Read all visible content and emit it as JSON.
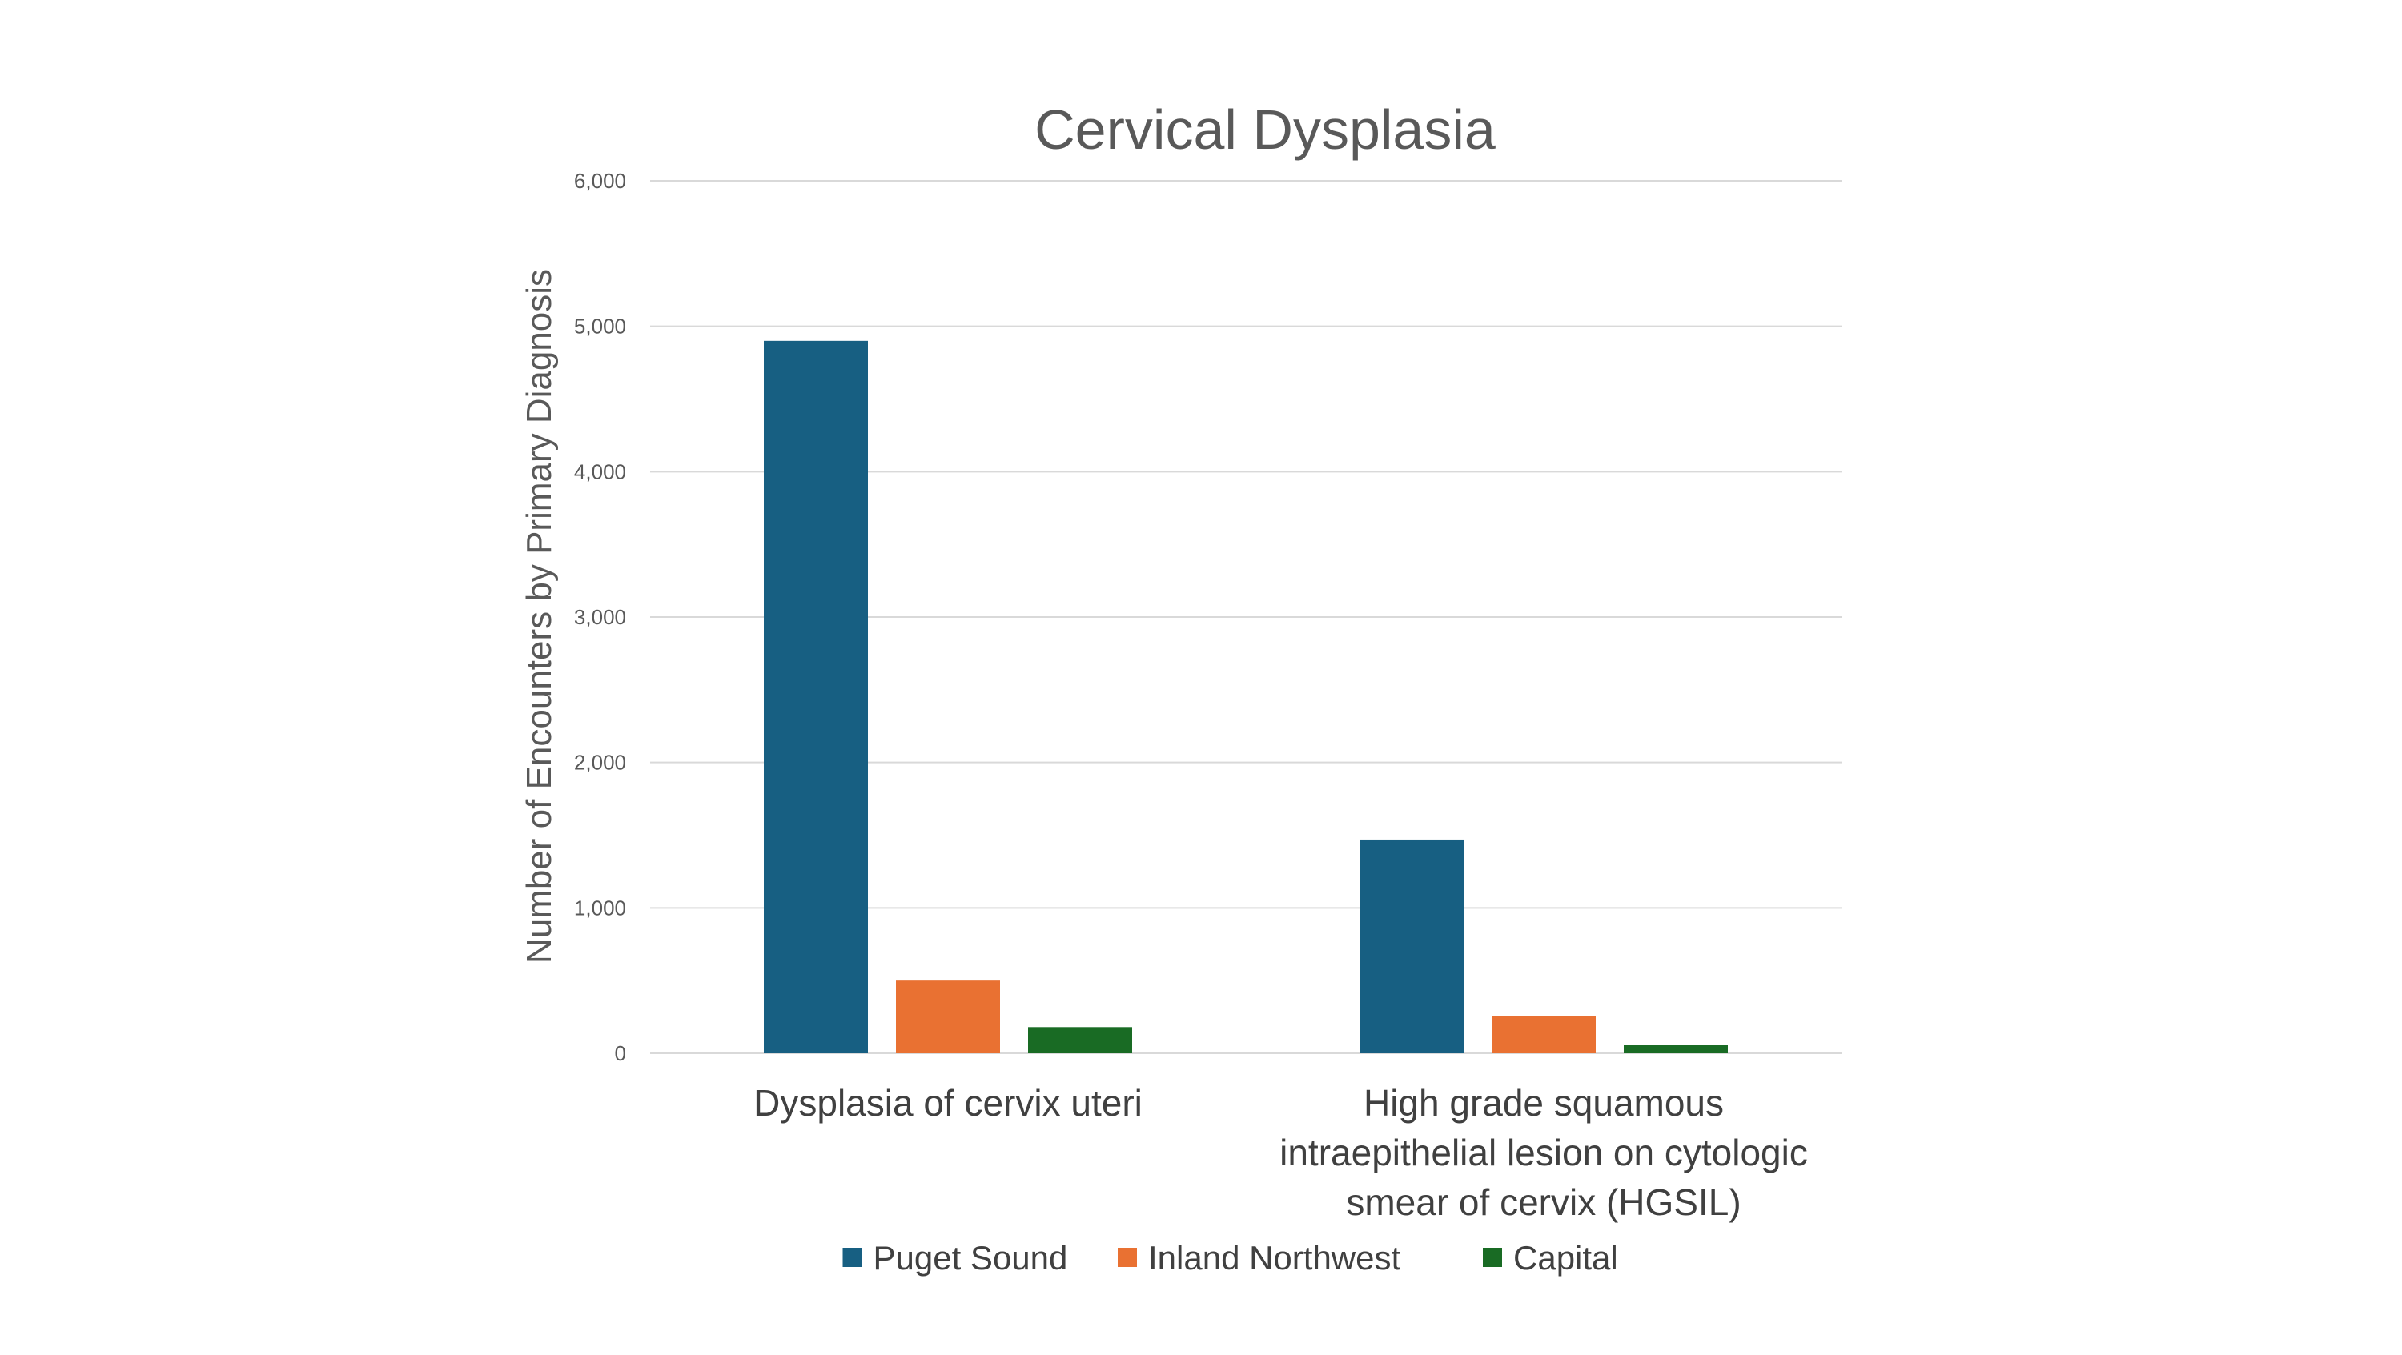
{
  "colors": {
    "Puget Sound": "#175F82",
    "Inland Northwest": "#E97132",
    "Capital": "#196B24"
  },
  "chart_data": {
    "type": "bar",
    "title": "Cervical Dysplasia",
    "xlabel": "",
    "ylabel": "Number of Encounters by Primary Diagnosis",
    "ylim": [
      0,
      6000
    ],
    "yticks": [
      0,
      1000,
      2000,
      3000,
      4000,
      5000,
      6000
    ],
    "ytick_labels": [
      "0",
      "1,000",
      "2,000",
      "3,000",
      "4,000",
      "5,000",
      "6,000"
    ],
    "grid": true,
    "legend": "bottom",
    "categories": [
      [
        "Dysplasia of cervix uteri"
      ],
      [
        "High grade squamous",
        "intraepithelial lesion on cytologic",
        "smear of cervix (HGSIL)"
      ]
    ],
    "series": [
      {
        "name": "Puget Sound",
        "values": [
          4900,
          1470
        ]
      },
      {
        "name": "Inland Northwest",
        "values": [
          500,
          255
        ]
      },
      {
        "name": "Capital",
        "values": [
          180,
          55
        ]
      }
    ]
  }
}
